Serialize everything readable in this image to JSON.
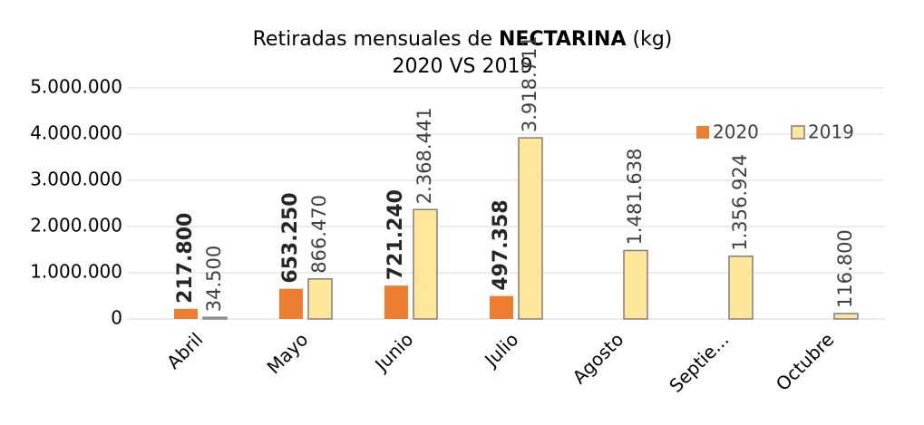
{
  "chart_data": {
    "type": "bar",
    "title": [
      "Retiradas mensuales de ",
      "NECTARINA",
      " (kg)"
    ],
    "subtitle": "2020 VS 2019",
    "categories": [
      "Abril",
      "Mayo",
      "Junio",
      "Julio",
      "Agosto",
      "Septie...",
      "Octubre"
    ],
    "series": [
      {
        "name": "2020",
        "color": "#ed7d31",
        "values": [
          217800,
          653250,
          721240,
          497358,
          null,
          null,
          null
        ],
        "value_labels": [
          "217.800",
          "653.250",
          "721.240",
          "497.358",
          null,
          null,
          null
        ]
      },
      {
        "name": "2019",
        "color": "#ffe699",
        "values": [
          34500,
          866470,
          2368441,
          3918711,
          1481638,
          1356924,
          116800
        ],
        "value_labels": [
          "34.500",
          "866.470",
          "2.368.441",
          "3.918.711",
          "1.481.638",
          "1.356.924",
          "116.800"
        ]
      }
    ],
    "ylim": [
      0,
      5000000
    ],
    "yticks": [
      0,
      {
        "value": 1000000,
        "label": "1.000.000"
      },
      {
        "value": 2000000,
        "label": "2.000.000"
      },
      {
        "value": 3000000,
        "label": "3.000.000"
      },
      {
        "value": 4000000,
        "label": "4.000.000"
      },
      {
        "value": 5000000,
        "label": "5.000.000"
      }
    ],
    "grid": true,
    "legend": "top-right"
  }
}
